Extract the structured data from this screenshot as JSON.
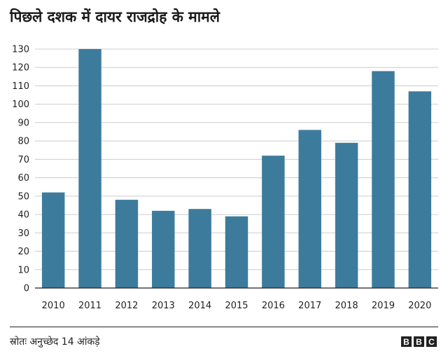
{
  "header": {
    "title": "पिछले दशक में दायर राजद्रोह के मामले"
  },
  "chart_data": {
    "type": "bar",
    "categories": [
      "2010",
      "2011",
      "2012",
      "2013",
      "2014",
      "2015",
      "2016",
      "2017",
      "2018",
      "2019",
      "2020"
    ],
    "values": [
      52,
      130,
      48,
      42,
      43,
      39,
      72,
      86,
      79,
      118,
      107
    ],
    "ylim": [
      0,
      130
    ],
    "yticks": [
      0,
      10,
      20,
      30,
      40,
      50,
      60,
      70,
      80,
      90,
      100,
      110,
      120,
      130
    ],
    "grid": true,
    "bar_color": "#3d7b9c",
    "xlabel": "",
    "ylabel": ""
  },
  "footer": {
    "source": "स्रोतः अनुच्छेद 14 आंकड़े",
    "logo_letters": [
      "B",
      "B",
      "C"
    ]
  }
}
